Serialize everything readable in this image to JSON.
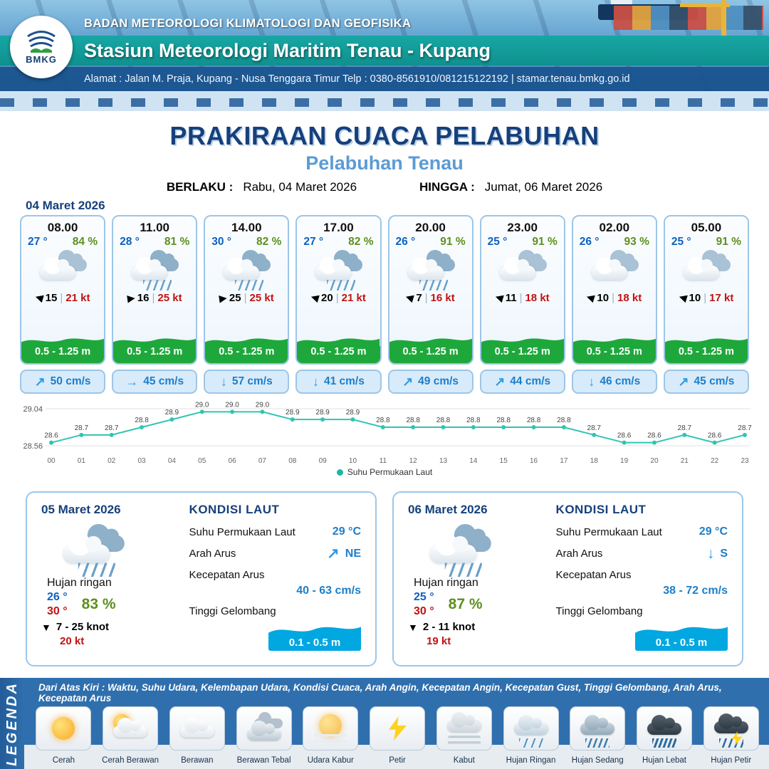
{
  "header": {
    "logo": "BMKG",
    "org": "BADAN METEOROLOGI KLIMATOLOGI DAN GEOFISIKA",
    "station": "Stasiun Meteorologi Maritim Tenau - Kupang",
    "address": "Alamat : Jalan M. Praja, Kupang - Nusa Tenggara Timur Telp : 0380-8561910/081215122192  | stamar.tenau.bmkg.go.id"
  },
  "title": {
    "main": "PRAKIRAAN CUACA PELABUHAN",
    "subtitle": "Pelabuhan Tenau",
    "berlaku_label": "BERLAKU :",
    "berlaku_value": "Rabu, 04 Maret 2026",
    "hingga_label": "HINGGA :",
    "hingga_value": "Jumat, 06 Maret 2026"
  },
  "forecast_date": "04 Maret 2026",
  "icons": {
    "wind_arrow": "▶",
    "sep": "|"
  },
  "hourly": [
    {
      "time": "08.00",
      "temp": "27 °",
      "rh": "84 %",
      "icon": "cloudy",
      "wind_rot": "w",
      "wind": "15",
      "gust": "21 kt",
      "wave": "0.5 - 1.25 m",
      "current_arrow": "↗",
      "current": "50 cm/s"
    },
    {
      "time": "11.00",
      "temp": "28 °",
      "rh": "81 %",
      "icon": "rain",
      "wind_rot": "e",
      "wind": "16",
      "gust": "25 kt",
      "wave": "0.5 - 1.25 m",
      "current_arrow": "→",
      "current": "45 cm/s"
    },
    {
      "time": "14.00",
      "temp": "30 °",
      "rh": "82 %",
      "icon": "rain",
      "wind_rot": "e",
      "wind": "25",
      "gust": "25 kt",
      "wave": "0.5 - 1.25 m",
      "current_arrow": "↓",
      "current": "57 cm/s"
    },
    {
      "time": "17.00",
      "temp": "27 °",
      "rh": "82 %",
      "icon": "rain",
      "wind_rot": "w",
      "wind": "20",
      "gust": "21 kt",
      "wave": "0.5 - 1.25 m",
      "current_arrow": "↓",
      "current": "41 cm/s"
    },
    {
      "time": "20.00",
      "temp": "26 °",
      "rh": "91 %",
      "icon": "rain",
      "wind_rot": "w",
      "wind": "7",
      "gust": "16 kt",
      "wave": "0.5 - 1.25 m",
      "current_arrow": "↗",
      "current": "49 cm/s"
    },
    {
      "time": "23.00",
      "temp": "25 °",
      "rh": "91 %",
      "icon": "cloudy",
      "wind_rot": "w",
      "wind": "11",
      "gust": "18 kt",
      "wave": "0.5 - 1.25 m",
      "current_arrow": "↗",
      "current": "44 cm/s"
    },
    {
      "time": "02.00",
      "temp": "26 °",
      "rh": "93 %",
      "icon": "cloudy",
      "wind_rot": "w",
      "wind": "10",
      "gust": "18 kt",
      "wave": "0.5 - 1.25 m",
      "current_arrow": "↓",
      "current": "46 cm/s"
    },
    {
      "time": "05.00",
      "temp": "25 °",
      "rh": "91 %",
      "icon": "cloudy",
      "wind_rot": "w",
      "wind": "10",
      "gust": "17 kt",
      "wave": "0.5 - 1.25 m",
      "current_arrow": "↗",
      "current": "45 cm/s"
    }
  ],
  "chart_data": {
    "type": "line",
    "title": "Suhu Permukaan Laut",
    "series_label": "Suhu Permukaan Laut",
    "x": [
      "00",
      "01",
      "02",
      "03",
      "04",
      "05",
      "06",
      "07",
      "08",
      "09",
      "10",
      "11",
      "12",
      "13",
      "14",
      "15",
      "16",
      "17",
      "18",
      "19",
      "20",
      "21",
      "22",
      "23"
    ],
    "values": [
      28.6,
      28.7,
      28.7,
      28.8,
      28.9,
      29.0,
      29.0,
      29.0,
      28.9,
      28.9,
      28.9,
      28.8,
      28.8,
      28.8,
      28.8,
      28.8,
      28.8,
      28.8,
      28.7,
      28.6,
      28.6,
      28.7,
      28.6,
      28.7
    ],
    "ylim": [
      28.56,
      29.04
    ],
    "ymin_label": "28.56",
    "ymax_label": "29.04",
    "line_color": "#2fc5b2"
  },
  "daily": [
    {
      "date": "05 Maret 2026",
      "icon": "rain",
      "condition": "Hujan ringan",
      "temp_min": "26 °",
      "temp_max": "30 °",
      "rh": "83 %",
      "wind_arrow": "▼",
      "wind": "7  - 25 knot",
      "gust": "20 kt",
      "sea": {
        "title": "KONDISI LAUT",
        "sst_label": "Suhu Permukaan Laut",
        "sst": "29 °C",
        "dir_label": "Arah Arus",
        "dir_arrow": "↗",
        "dir": "NE",
        "speed_label": "Kecepatan Arus",
        "speed": "40 - 63 cm/s",
        "wave_label": "Tinggi Gelombang",
        "wave": "0.1 - 0.5 m"
      }
    },
    {
      "date": "06 Maret 2026",
      "icon": "rain",
      "condition": "Hujan ringan",
      "temp_min": "25 °",
      "temp_max": "30 °",
      "rh": "87 %",
      "wind_arrow": "▼",
      "wind": "2  - 11 knot",
      "gust": "19 kt",
      "sea": {
        "title": "KONDISI LAUT",
        "sst_label": "Suhu Permukaan Laut",
        "sst": "29 °C",
        "dir_label": "Arah Arus",
        "dir_arrow": "↓",
        "dir": "S",
        "speed_label": "Kecepatan Arus",
        "speed": "38 - 72 cm/s",
        "wave_label": "Tinggi Gelombang",
        "wave": "0.1 - 0.5 m"
      }
    }
  ],
  "legend": {
    "title": "LEGENDA",
    "description": "Dari Atas Kiri : Waktu, Suhu Udara, Kelembapan Udara, Kondisi Cuaca, Arah Angin, Kecepatan Angin, Kecepatan Gust, Tinggi Gelombang, Arah Arus, Kecepatan Arus",
    "items": [
      {
        "label": "Cerah",
        "icon": "sun"
      },
      {
        "label": "Cerah Berawan",
        "icon": "sun-cloud"
      },
      {
        "label": "Berawan",
        "icon": "cloud"
      },
      {
        "label": "Berawan Tebal",
        "icon": "cloud-thick"
      },
      {
        "label": "Udara Kabur",
        "icon": "haze"
      },
      {
        "label": "Petir",
        "icon": "bolt"
      },
      {
        "label": "Kabut",
        "icon": "fog"
      },
      {
        "label": "Hujan Ringan",
        "icon": "rain-light"
      },
      {
        "label": "Hujan Sedang",
        "icon": "rain-med"
      },
      {
        "label": "Hujan Lebat",
        "icon": "rain-heavy"
      },
      {
        "label": "Hujan Petir",
        "icon": "storm"
      }
    ]
  }
}
